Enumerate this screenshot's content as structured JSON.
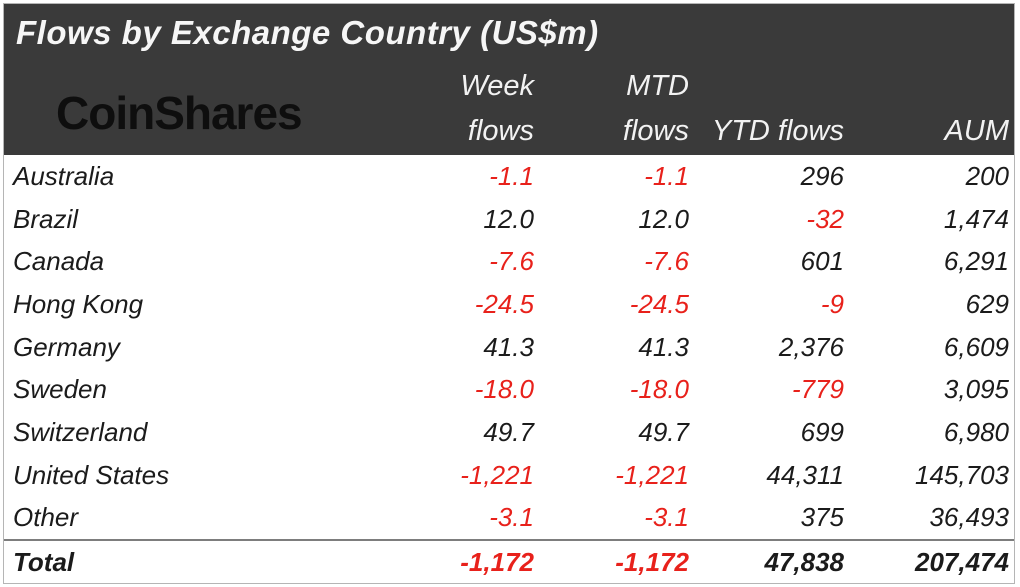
{
  "header": {
    "title": "Flows by Exchange Country (US$m)",
    "logo_text": "CoinShares",
    "background_color": "#3a3a3a",
    "text_color": "#f6f6f6"
  },
  "columns": [
    {
      "line1": "Week",
      "line2": "flows"
    },
    {
      "line1": "MTD",
      "line2": "flows"
    },
    {
      "line1": "",
      "line2": "YTD flows"
    },
    {
      "line1": "",
      "line2": "AUM"
    }
  ],
  "table": {
    "rows": [
      {
        "country": "Australia",
        "week": "-1.1",
        "mtd": "-1.1",
        "ytd": "296",
        "aum": "200"
      },
      {
        "country": "Brazil",
        "week": "12.0",
        "mtd": "12.0",
        "ytd": "-32",
        "aum": "1,474"
      },
      {
        "country": "Canada",
        "week": "-7.6",
        "mtd": "-7.6",
        "ytd": "601",
        "aum": "6,291"
      },
      {
        "country": "Hong Kong",
        "week": "-24.5",
        "mtd": "-24.5",
        "ytd": "-9",
        "aum": "629"
      },
      {
        "country": "Germany",
        "week": "41.3",
        "mtd": "41.3",
        "ytd": "2,376",
        "aum": "6,609"
      },
      {
        "country": "Sweden",
        "week": "-18.0",
        "mtd": "-18.0",
        "ytd": "-779",
        "aum": "3,095"
      },
      {
        "country": "Switzerland",
        "week": "49.7",
        "mtd": "49.7",
        "ytd": "699",
        "aum": "6,980"
      },
      {
        "country": "United States",
        "week": "-1,221",
        "mtd": "-1,221",
        "ytd": "44,311",
        "aum": "145,703"
      },
      {
        "country": "Other",
        "week": "-3.1",
        "mtd": "-3.1",
        "ytd": "375",
        "aum": "36,493"
      }
    ],
    "total": {
      "label": "Total",
      "week": "-1,172",
      "mtd": "-1,172",
      "ytd": "47,838",
      "aum": "207,474"
    }
  },
  "colors": {
    "negative": "#e8211b",
    "positive_text": "#1b1b1b",
    "header_bg": "#3a3a3a",
    "frame_border": "#b5b5b5",
    "total_rule": "#7d7d7d"
  },
  "chart_data": {
    "type": "table",
    "title": "Flows by Exchange Country (US$m)",
    "columns": [
      "Week flows",
      "MTD flows",
      "YTD flows",
      "AUM"
    ],
    "categories": [
      "Australia",
      "Brazil",
      "Canada",
      "Hong Kong",
      "Germany",
      "Sweden",
      "Switzerland",
      "United States",
      "Other",
      "Total"
    ],
    "series": [
      {
        "name": "Week flows",
        "values": [
          -1.1,
          12.0,
          -7.6,
          -24.5,
          41.3,
          -18.0,
          49.7,
          -1221,
          -3.1,
          -1172
        ]
      },
      {
        "name": "MTD flows",
        "values": [
          -1.1,
          12.0,
          -7.6,
          -24.5,
          41.3,
          -18.0,
          49.7,
          -1221,
          -3.1,
          -1172
        ]
      },
      {
        "name": "YTD flows",
        "values": [
          296,
          -32,
          601,
          -9,
          2376,
          -779,
          699,
          44311,
          375,
          47838
        ]
      },
      {
        "name": "AUM",
        "values": [
          200,
          1474,
          6291,
          629,
          6609,
          3095,
          6980,
          145703,
          36493,
          207474
        ]
      }
    ],
    "layout": {
      "negative_values_red": true,
      "units": "US$m"
    }
  }
}
